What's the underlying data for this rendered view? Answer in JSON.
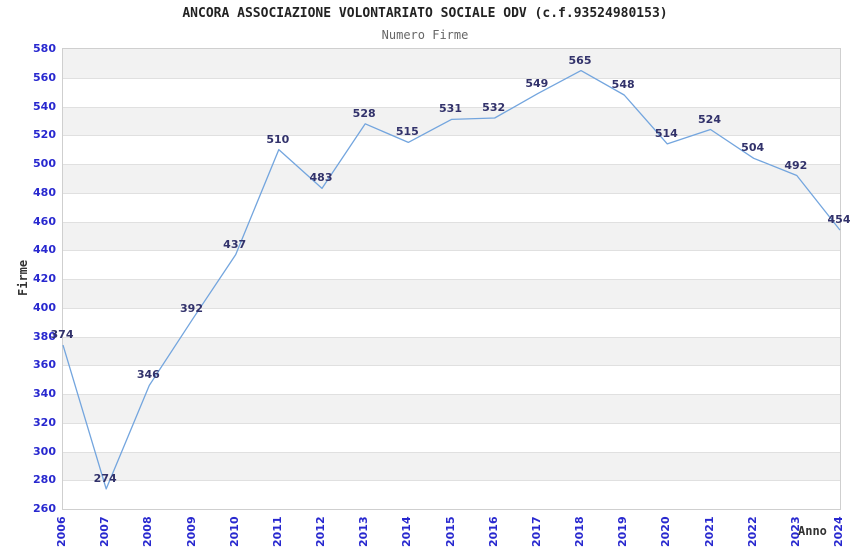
{
  "header": {
    "title": "ANCORA ASSOCIAZIONE VOLONTARIATO SOCIALE ODV (c.f.93524980153)",
    "subtitle": "Numero Firme"
  },
  "chart_data": {
    "type": "line",
    "title": "ANCORA ASSOCIAZIONE VOLONTARIATO SOCIALE ODV (c.f.93524980153)",
    "subtitle": "Numero Firme",
    "xlabel": "Anno",
    "ylabel": "Firme",
    "categories": [
      "2006",
      "2007",
      "2008",
      "2009",
      "2010",
      "2011",
      "2012",
      "2013",
      "2014",
      "2015",
      "2016",
      "2017",
      "2018",
      "2019",
      "2020",
      "2021",
      "2022",
      "2023",
      "2024"
    ],
    "series": [
      {
        "name": "Numero Firme",
        "values": [
          374,
          274,
          346,
          392,
          437,
          510,
          483,
          528,
          515,
          531,
          532,
          549,
          565,
          548,
          514,
          524,
          504,
          492,
          454
        ]
      }
    ],
    "ylim": [
      260,
      580
    ],
    "ytick_step": 20,
    "grid": true,
    "legend": "none",
    "band_colors": [
      "#f2f2f2",
      "#ffffff"
    ],
    "colors": {
      "line": "#73a5de",
      "tick_label": "#2828cf",
      "data_label": "#32326b",
      "title": "#222222",
      "subtitle": "#666666",
      "axis_title": "#333333"
    }
  }
}
